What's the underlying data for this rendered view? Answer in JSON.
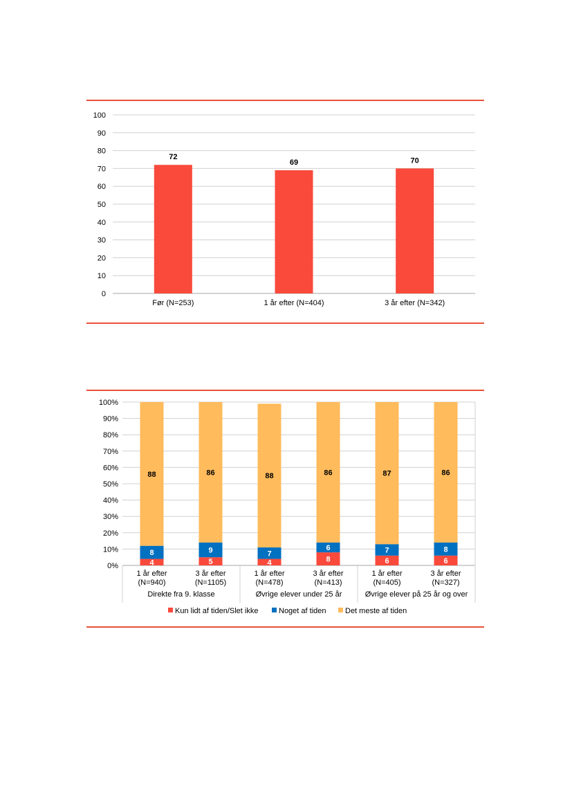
{
  "colors": {
    "rule": "#e8513a",
    "bar": "#f94a3c",
    "seg_low": "#f94a3c",
    "seg_mid": "#0070c0",
    "seg_high": "#ffbb5c",
    "grid": "#d0d0d0"
  },
  "chart_data": [
    {
      "type": "bar",
      "categories": [
        "Før (N=253)",
        "1 år efter (N=404)",
        "3 år efter (N=342)"
      ],
      "values": [
        72,
        69,
        70
      ],
      "data_labels": [
        "72",
        "69",
        "70"
      ],
      "ylim": [
        0,
        100
      ],
      "yticks": [
        "0",
        "10",
        "20",
        "30",
        "40",
        "50",
        "60",
        "70",
        "80",
        "90",
        "100"
      ],
      "grid": true
    },
    {
      "type": "bar",
      "stacked": true,
      "percent": true,
      "categories": [
        [
          "1 år efter",
          "(N=940)"
        ],
        [
          "3 år efter",
          "(N=1105)"
        ],
        [
          "1 år efter",
          "(N=478)"
        ],
        [
          "3 år efter",
          "(N=413)"
        ],
        [
          "1 år efter",
          "(N=405)"
        ],
        [
          "3 år efter",
          "(N=327)"
        ]
      ],
      "groups": [
        "Direkte fra 9. klasse",
        "Øvrige elever under 25 år",
        "Øvrige elever på 25 år og over"
      ],
      "series": [
        {
          "name": "Kun lidt af tiden/Slet ikke",
          "values": [
            4,
            5,
            4,
            8,
            6,
            6
          ],
          "labels": [
            "4",
            "5",
            "4",
            "8",
            "6",
            "6"
          ]
        },
        {
          "name": "Noget af tiden",
          "values": [
            8,
            9,
            7,
            6,
            7,
            8
          ],
          "labels": [
            "8",
            "9",
            "7",
            "6",
            "7",
            "8"
          ]
        },
        {
          "name": "Det meste af tiden",
          "values": [
            88,
            86,
            88,
            86,
            87,
            86
          ],
          "labels": [
            "88",
            "86",
            "88",
            "86",
            "87",
            "86"
          ]
        }
      ],
      "ylim": [
        0,
        100
      ],
      "yticks": [
        "0%",
        "10%",
        "20%",
        "30%",
        "40%",
        "50%",
        "60%",
        "70%",
        "80%",
        "90%",
        "100%"
      ],
      "legend_position": "bottom",
      "grid": true
    }
  ]
}
